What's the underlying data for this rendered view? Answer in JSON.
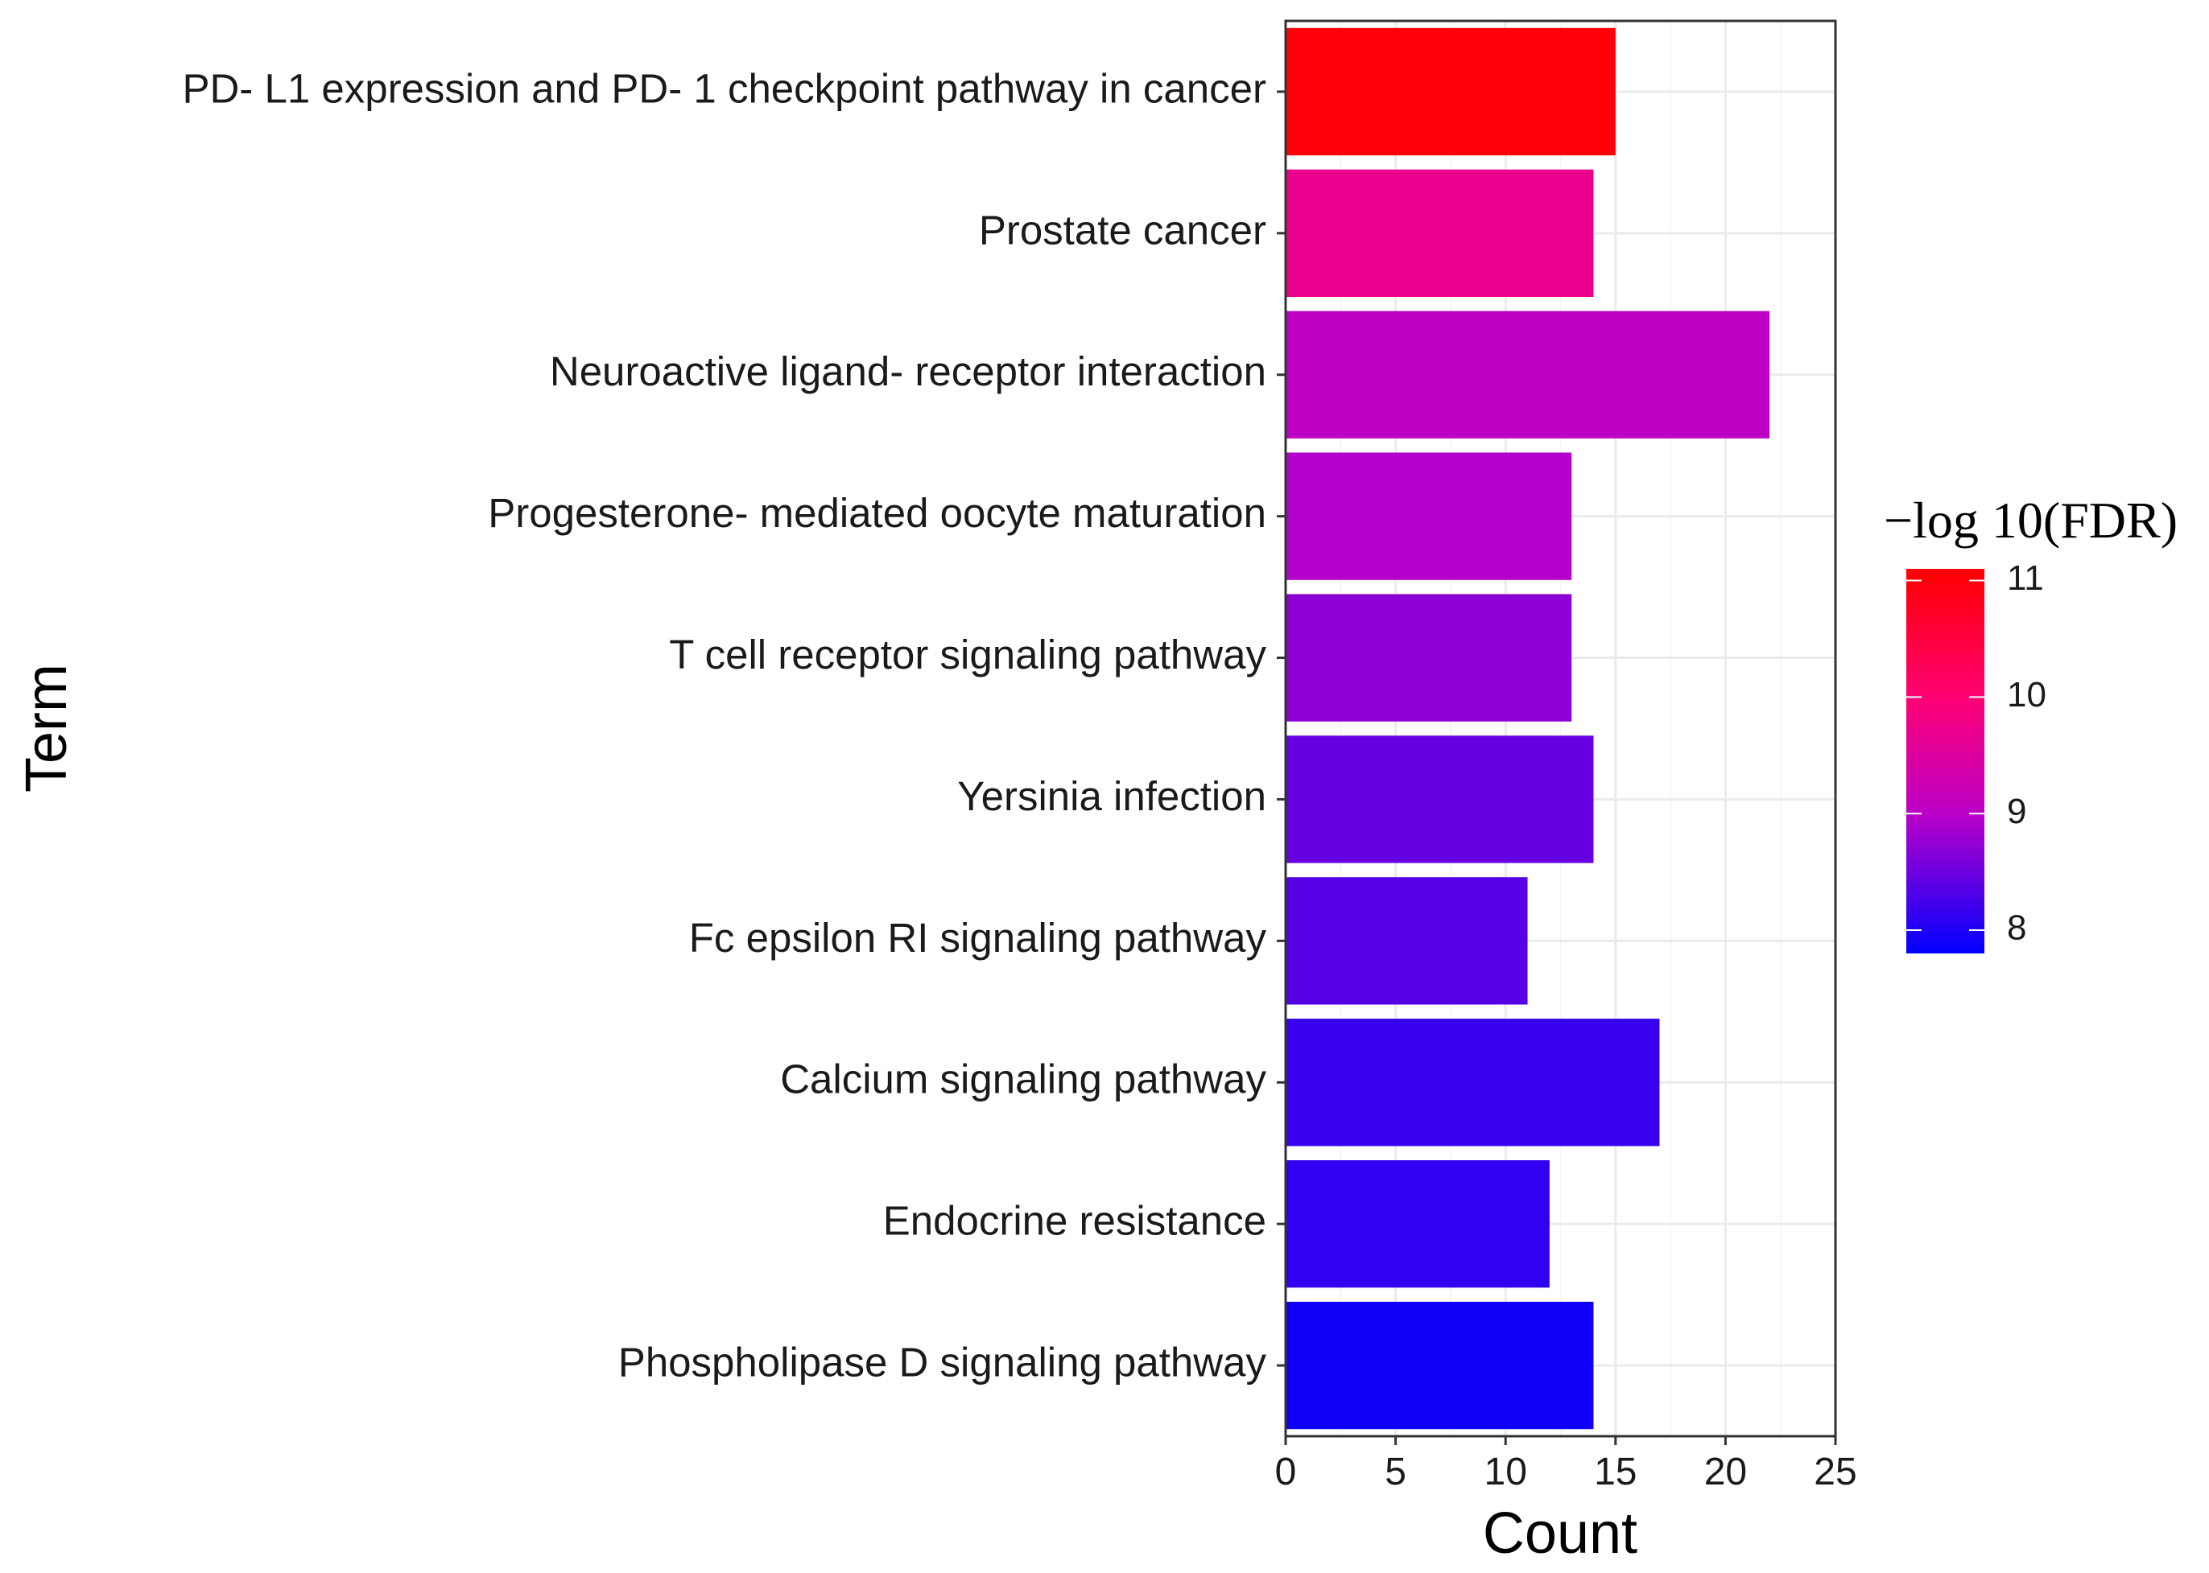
{
  "chart_data": {
    "type": "bar",
    "orientation": "horizontal",
    "xlabel": "Count",
    "ylabel": "Term",
    "xlim": [
      0,
      25
    ],
    "xticks": [
      0,
      5,
      10,
      15,
      20,
      25
    ],
    "grid": true,
    "categories": [
      "PD- L1 expression and PD- 1 checkpoint pathway in cancer",
      "Prostate cancer",
      "Neuroactive ligand- receptor interaction",
      "Progesterone- mediated oocyte maturation",
      "T cell receptor signaling pathway",
      "Yersinia infection",
      "Fc epsilon RI signaling pathway",
      "Calcium signaling pathway",
      "Endocrine resistance",
      "Phospholipase D signaling pathway"
    ],
    "values": [
      15,
      14,
      22,
      13,
      13,
      14,
      11,
      17,
      12,
      14
    ],
    "color_values": [
      11.0,
      9.7,
      9.05,
      8.95,
      8.7,
      8.45,
      8.35,
      8.15,
      8.1,
      7.9
    ],
    "colorbar": {
      "title": "−log 10(FDR)",
      "min": 7.8,
      "max": 11.1,
      "ticks": [
        8,
        9,
        10,
        11
      ],
      "stops": [
        {
          "value": 7.8,
          "color": "#0000ff"
        },
        {
          "value": 9.0,
          "color": "#bb00c8"
        },
        {
          "value": 10.0,
          "color": "#ff0073"
        },
        {
          "value": 11.1,
          "color": "#ff0000"
        }
      ],
      "placement": "right"
    }
  }
}
